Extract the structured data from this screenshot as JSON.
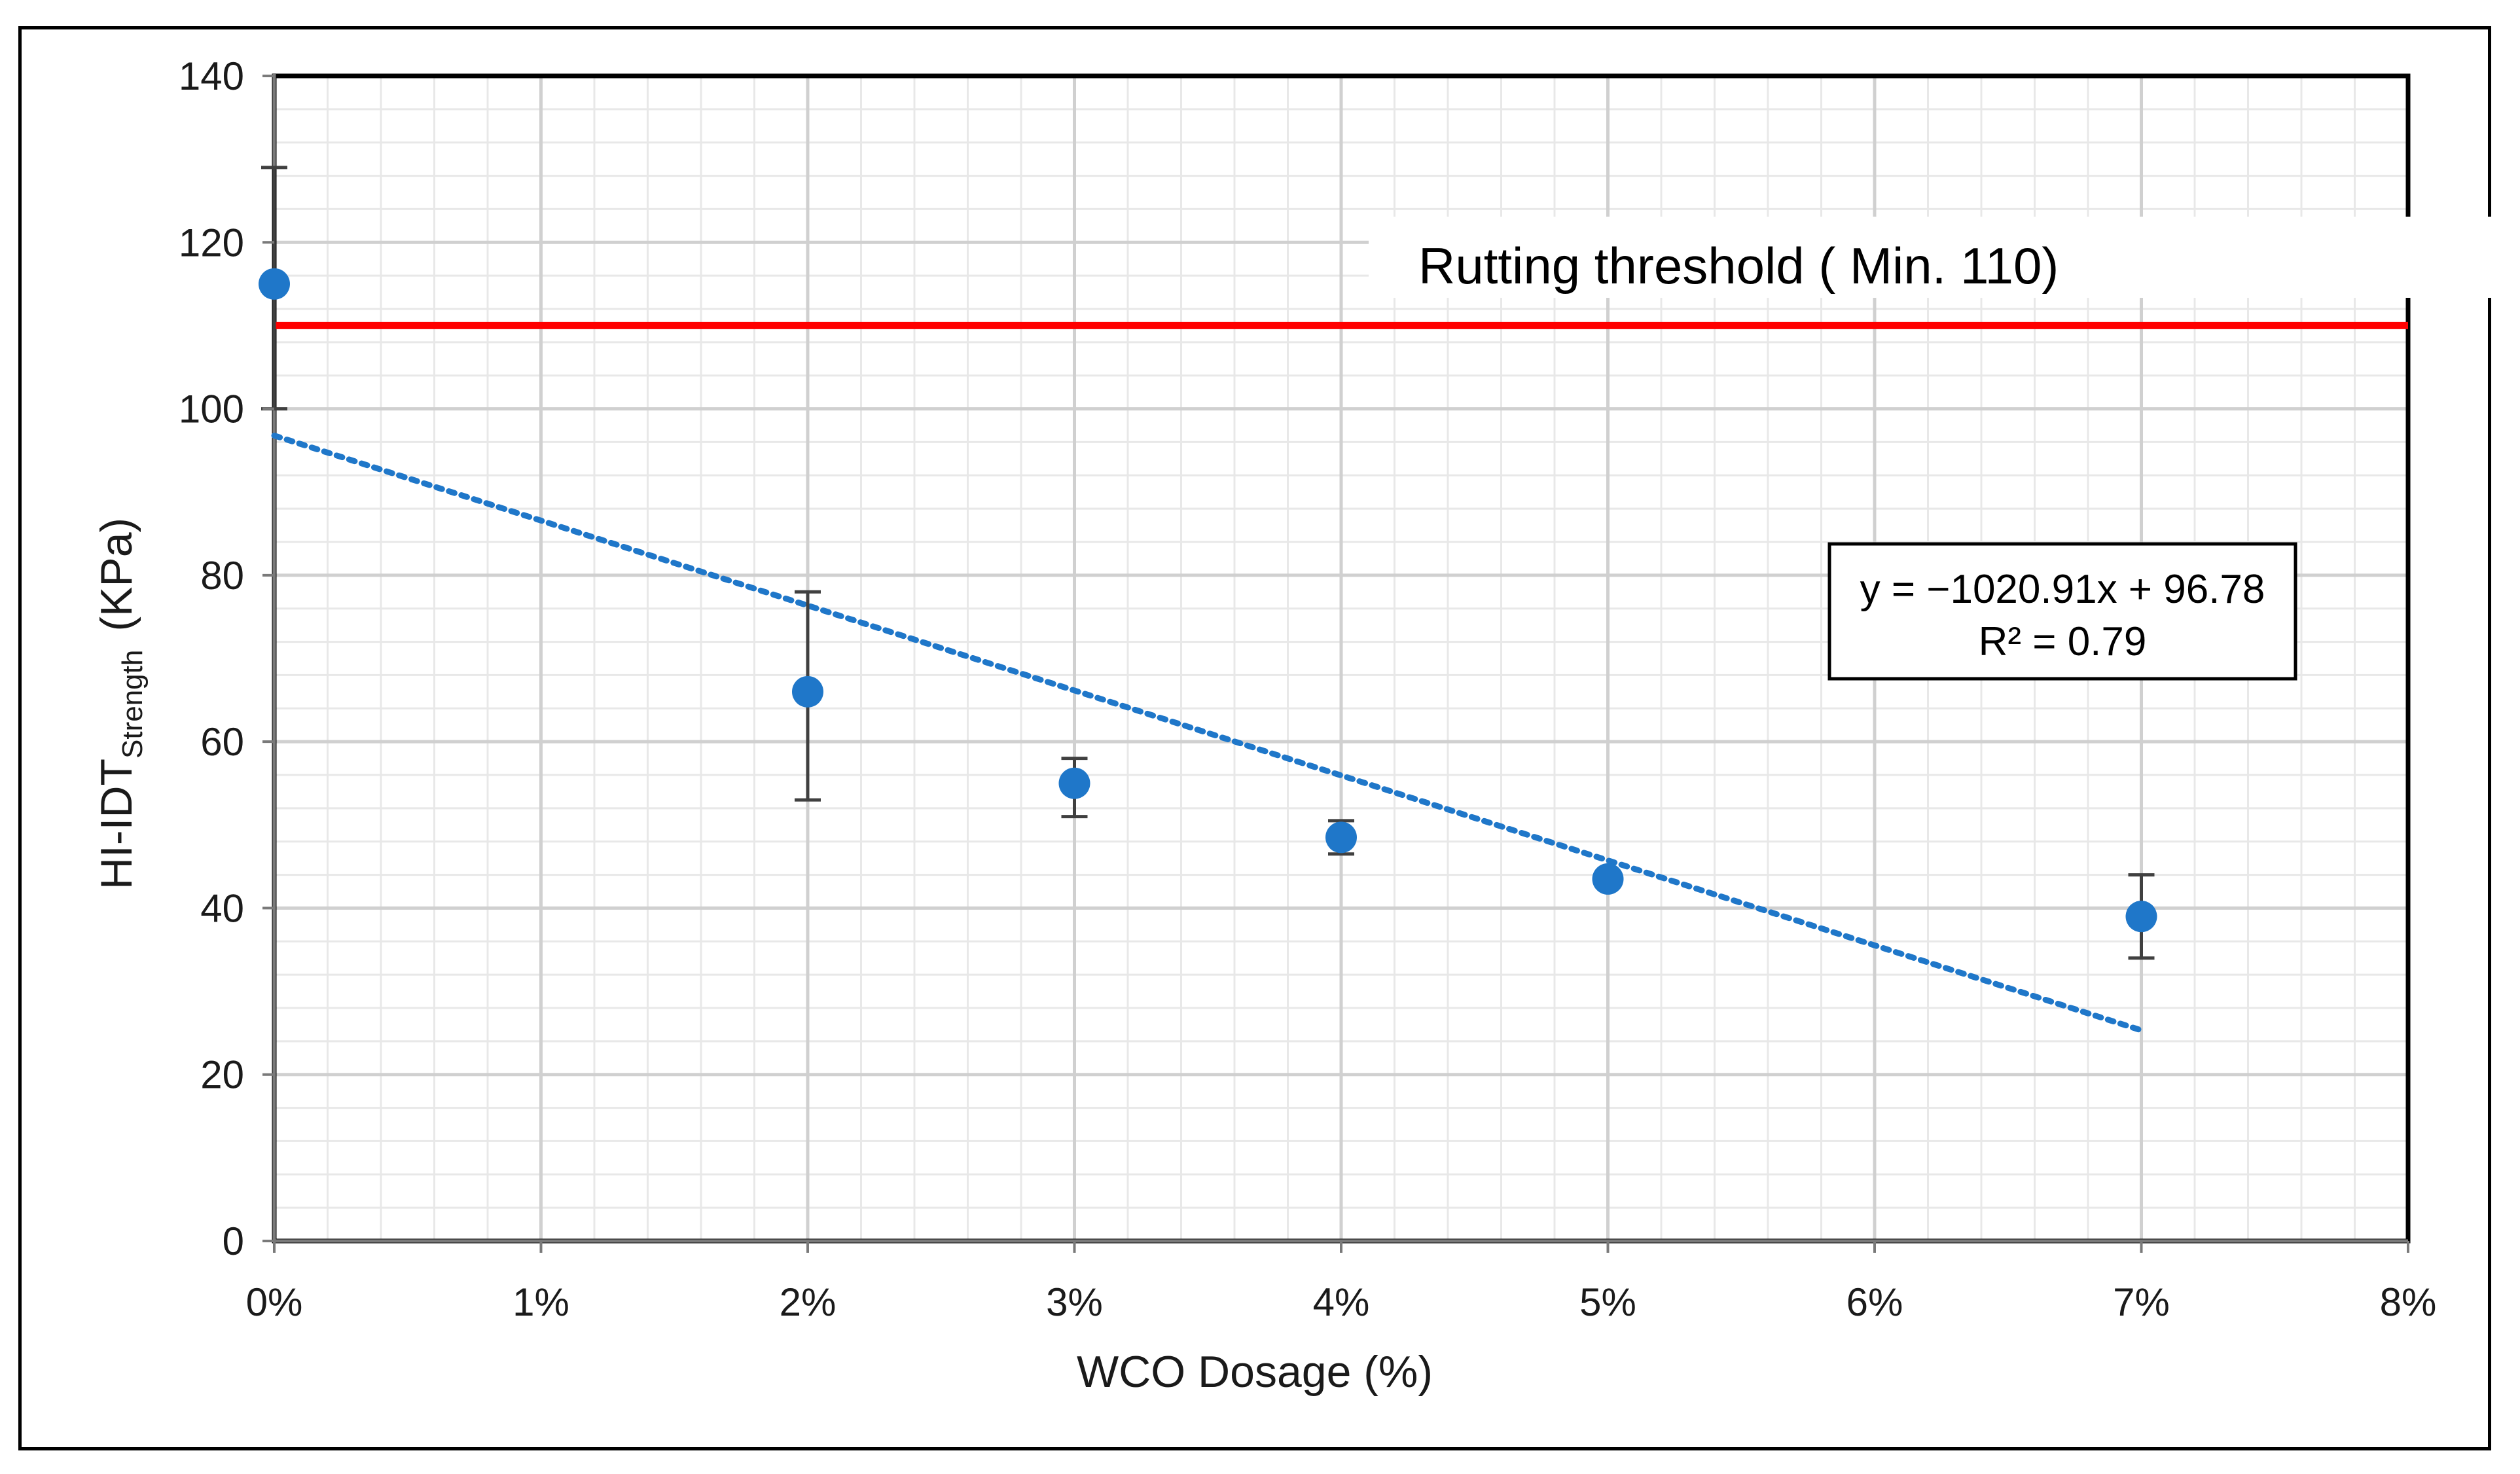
{
  "chart_data": {
    "type": "scatter",
    "title": "",
    "xlabel": "WCO Dosage (%)",
    "ylabel_main": "HI-IDT",
    "ylabel_sub": "Strength",
    "ylabel_unit": "(KPa)",
    "xlim": [
      0,
      0.08
    ],
    "ylim": [
      0,
      140
    ],
    "x_ticks": [
      0,
      0.01,
      0.02,
      0.03,
      0.04,
      0.05,
      0.06,
      0.07,
      0.08
    ],
    "x_tick_labels": [
      "0%",
      "1%",
      "2%",
      "3%",
      "4%",
      "5%",
      "6%",
      "7%",
      "8%"
    ],
    "y_ticks": [
      0,
      20,
      40,
      60,
      80,
      100,
      120,
      140
    ],
    "y_tick_labels": [
      "0",
      "20",
      "40",
      "60",
      "80",
      "100",
      "120",
      "140"
    ],
    "grid": true,
    "series": [
      {
        "name": "HI-IDT Strength",
        "color": "#1f77c9",
        "points": [
          {
            "x": 0.0,
            "y": 115,
            "err_low": 100,
            "err_high": 129
          },
          {
            "x": 0.02,
            "y": 66,
            "err_low": 53,
            "err_high": 78
          },
          {
            "x": 0.03,
            "y": 55,
            "err_low": 51,
            "err_high": 58
          },
          {
            "x": 0.04,
            "y": 48.5,
            "err_low": 46.5,
            "err_high": 50.5
          },
          {
            "x": 0.05,
            "y": 43.5,
            "err_low": 43.5,
            "err_high": 43.5
          },
          {
            "x": 0.07,
            "y": 39,
            "err_low": 34,
            "err_high": 44
          }
        ]
      }
    ],
    "trendline": {
      "slope": -1020.91,
      "intercept": 96.78,
      "x_range": [
        0,
        0.07
      ],
      "style": "dotted",
      "color": "#1f77c9",
      "equation": "y = −1020.91x + 96.78",
      "r_squared": "R² = 0.79"
    },
    "threshold": {
      "value": 110,
      "color": "#ff0000",
      "label": "Rutting  threshold ( Min. 110)"
    },
    "colors": {
      "major_grid": "#d0d0d0",
      "minor_grid": "#e8e8e8",
      "errorbar": "#404040",
      "axis": "#000000"
    }
  }
}
